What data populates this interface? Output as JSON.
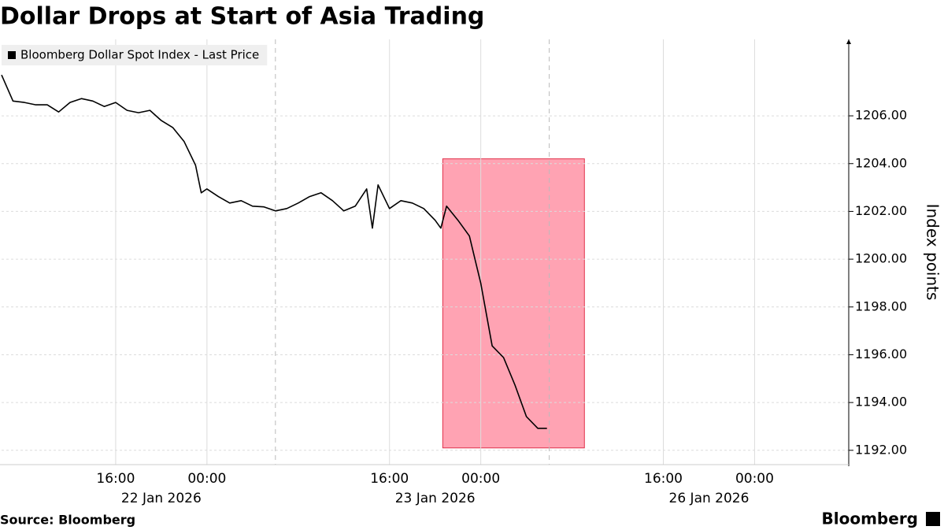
{
  "chart_data": {
    "type": "line",
    "title": "Dollar Drops at Start of Asia Trading",
    "ylabel": "Index points",
    "source": "Source: Bloomberg",
    "brand": "Bloomberg",
    "hide_weekends": true,
    "grid": true,
    "x": [
      "2026-01-22T06:00",
      "2026-01-22T07:00",
      "2026-01-22T08:00",
      "2026-01-22T09:00",
      "2026-01-22T10:00",
      "2026-01-22T11:00",
      "2026-01-22T12:00",
      "2026-01-22T13:00",
      "2026-01-22T14:00",
      "2026-01-22T15:00",
      "2026-01-22T16:00",
      "2026-01-22T17:00",
      "2026-01-22T18:00",
      "2026-01-22T19:00",
      "2026-01-22T20:00",
      "2026-01-22T21:00",
      "2026-01-22T22:00",
      "2026-01-22T23:00",
      "2026-01-22T23:30",
      "2026-01-23T00:00",
      "2026-01-23T01:00",
      "2026-01-23T02:00",
      "2026-01-23T03:00",
      "2026-01-23T04:00",
      "2026-01-23T05:00",
      "2026-01-23T06:00",
      "2026-01-23T07:00",
      "2026-01-23T08:00",
      "2026-01-23T09:00",
      "2026-01-23T10:00",
      "2026-01-23T11:00",
      "2026-01-23T12:00",
      "2026-01-23T13:00",
      "2026-01-23T14:00",
      "2026-01-23T14:30",
      "2026-01-23T15:00",
      "2026-01-23T16:00",
      "2026-01-23T17:00",
      "2026-01-23T18:00",
      "2026-01-23T19:00",
      "2026-01-23T20:00",
      "2026-01-23T20:30",
      "2026-01-23T21:00",
      "2026-01-23T22:00",
      "2026-01-23T23:00",
      "2026-01-23T23:30",
      "2026-01-26T00:00",
      "2026-01-26T01:00",
      "2026-01-26T02:00",
      "2026-01-26T03:00",
      "2026-01-26T04:00",
      "2026-01-26T05:00",
      "2026-01-26T05:48"
    ],
    "series": [
      {
        "name": "Bloomberg Dollar Spot Index - Last Price",
        "color": "#000000",
        "values": [
          1207.71,
          1206.62,
          1206.56,
          1206.46,
          1206.46,
          1206.16,
          1206.56,
          1206.72,
          1206.62,
          1206.39,
          1206.56,
          1206.23,
          1206.13,
          1206.23,
          1205.8,
          1205.51,
          1204.92,
          1203.93,
          1202.78,
          1202.94,
          1202.62,
          1202.35,
          1202.45,
          1202.22,
          1202.19,
          1202.02,
          1202.12,
          1202.35,
          1202.62,
          1202.78,
          1202.45,
          1202.02,
          1202.22,
          1202.94,
          1201.3,
          1203.11,
          1202.12,
          1202.45,
          1202.35,
          1202.12,
          1201.63,
          1201.3,
          1202.22,
          1201.63,
          1200.97,
          1199.98,
          1199.0,
          1196.37,
          1195.88,
          1194.73,
          1193.41,
          1192.92,
          1192.92
        ]
      }
    ],
    "xlim": [
      "2026-01-22T06:00",
      "2026-01-27T08:15"
    ],
    "xticks": [
      {
        "value": "2026-01-22T16:00",
        "label": "16:00"
      },
      {
        "value": "2026-01-23T00:00",
        "label": "00:00"
      },
      {
        "value": "2026-01-23T16:00",
        "label": "16:00"
      },
      {
        "value": "2026-01-26T00:00",
        "label": "00:00"
      },
      {
        "value": "2026-01-26T16:00",
        "label": "16:00"
      },
      {
        "value": "2026-01-27T00:00",
        "label": "00:00"
      }
    ],
    "xdates": [
      {
        "value": "2026-01-22T20:00",
        "label": "22 Jan 2026"
      },
      {
        "value": "2026-01-23T20:00",
        "label": "23 Jan 2026"
      },
      {
        "value": "2026-01-26T20:00",
        "label": "26 Jan 2026"
      }
    ],
    "xdashlines": [
      "2026-01-23T06:00",
      "2026-01-26T06:00"
    ],
    "ylim": [
      1191.4,
      1209.2
    ],
    "yticks": [
      {
        "value": 1192,
        "label": "1192.00"
      },
      {
        "value": 1194,
        "label": "1194.00"
      },
      {
        "value": 1196,
        "label": "1196.00"
      },
      {
        "value": 1198,
        "label": "1198.00"
      },
      {
        "value": 1200,
        "label": "1200.00"
      },
      {
        "value": 1202,
        "label": "1202.00"
      },
      {
        "value": 1204,
        "label": "1204.00"
      },
      {
        "value": 1206,
        "label": "1206.00"
      }
    ],
    "highlight": {
      "x": [
        "2026-01-23T20:40",
        "2026-01-26T09:05"
      ],
      "y": [
        1192.1,
        1204.2
      ],
      "color": "#ffa3b3"
    }
  }
}
